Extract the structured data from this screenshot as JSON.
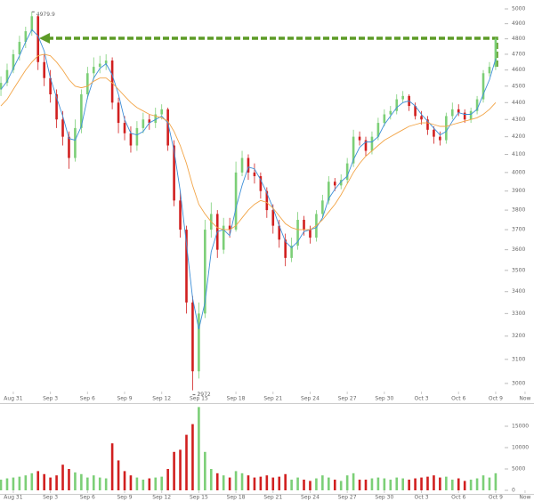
{
  "chart_data": [
    {
      "type": "candlestick",
      "log_scale": true,
      "up_color": "#7ccf77",
      "down_color": "#d11f1f",
      "xlim": [
        -0.15,
        86.2
      ],
      "xticks": [
        {
          "value": 2,
          "label": "Aug 31"
        },
        {
          "value": 8,
          "label": "Sep 3"
        },
        {
          "value": 14,
          "label": "Sep 6"
        },
        {
          "value": 20,
          "label": "Sep 9"
        },
        {
          "value": 26,
          "label": "Sep 12"
        },
        {
          "value": 32,
          "label": "Sep 15"
        },
        {
          "value": 38,
          "label": "Sep 18"
        },
        {
          "value": 44,
          "label": "Sep 21"
        },
        {
          "value": 50,
          "label": "Sep 24"
        },
        {
          "value": 56,
          "label": "Sep 27"
        },
        {
          "value": 62,
          "label": "Sep 30"
        },
        {
          "value": 68,
          "label": "Oct 3"
        },
        {
          "value": 74,
          "label": "Oct 6"
        },
        {
          "value": 80,
          "label": "Oct 9"
        },
        {
          "value": 84.75,
          "label": "Now"
        }
      ],
      "ylim": [
        2924,
        5061
      ],
      "yticks": [
        3000,
        3100,
        3200,
        3300,
        3400,
        3500,
        3600,
        3700,
        3800,
        3900,
        4000,
        4100,
        4200,
        4300,
        4400,
        4500,
        4600,
        4700,
        4800,
        4900,
        5000
      ],
      "annotations": [
        {
          "text": "4979.9"
        },
        {
          "text": "2972"
        }
      ],
      "open": [
        4480,
        4520,
        4600,
        4700,
        4780,
        4850,
        4950,
        4650,
        4550,
        4450,
        4300,
        4200,
        4080,
        4250,
        4450,
        4580,
        4620,
        4640,
        4660,
        4400,
        4280,
        4220,
        4150,
        4250,
        4300,
        4280,
        4330,
        4360,
        4150,
        3850,
        3700,
        3350,
        3050,
        3300,
        3700,
        3780,
        3600,
        3720,
        3700,
        4000,
        4080,
        4000,
        3980,
        3900,
        3800,
        3720,
        3650,
        3560,
        3620,
        3750,
        3700,
        3660,
        3780,
        3850,
        3950,
        3930,
        3960,
        4050,
        4200,
        4180,
        4120,
        4200,
        4280,
        4330,
        4350,
        4420,
        4440,
        4380,
        4320,
        4300,
        4240,
        4200,
        4180,
        4320,
        4360,
        4340,
        4300,
        4350,
        4420,
        4580,
        4620
      ],
      "high": [
        4560,
        4640,
        4730,
        4820,
        4880,
        4979.9,
        4960,
        4700,
        4600,
        4480,
        4350,
        4230,
        4300,
        4480,
        4620,
        4680,
        4690,
        4700,
        4680,
        4430,
        4320,
        4260,
        4290,
        4340,
        4330,
        4370,
        4390,
        4370,
        4180,
        3900,
        3720,
        3380,
        3350,
        3750,
        3840,
        3800,
        3760,
        3760,
        4060,
        4120,
        4100,
        4050,
        4000,
        3920,
        3830,
        3750,
        3680,
        3660,
        3790,
        3770,
        3720,
        3800,
        3880,
        3980,
        3970,
        3990,
        4080,
        4240,
        4230,
        4200,
        4230,
        4310,
        4360,
        4380,
        4450,
        4470,
        4450,
        4400,
        4350,
        4320,
        4260,
        4230,
        4340,
        4400,
        4390,
        4360,
        4370,
        4440,
        4600,
        4650,
        4810
      ],
      "low": [
        4440,
        4500,
        4580,
        4660,
        4740,
        4820,
        4600,
        4500,
        4400,
        4250,
        4150,
        4020,
        4060,
        4220,
        4420,
        4540,
        4580,
        4600,
        4360,
        4220,
        4180,
        4110,
        4120,
        4220,
        4240,
        4250,
        4300,
        4120,
        3820,
        3660,
        3300,
        2972,
        3020,
        3280,
        3660,
        3560,
        3580,
        3660,
        3690,
        3980,
        3960,
        3940,
        3860,
        3760,
        3680,
        3610,
        3520,
        3540,
        3600,
        3670,
        3630,
        3640,
        3760,
        3830,
        3900,
        3910,
        3940,
        4030,
        4150,
        4090,
        4100,
        4180,
        4260,
        4300,
        4330,
        4400,
        4350,
        4300,
        4270,
        4210,
        4160,
        4150,
        4160,
        4300,
        4320,
        4280,
        4280,
        4330,
        4400,
        4560,
        4600
      ],
      "close": [
        4520,
        4600,
        4700,
        4780,
        4850,
        4950,
        4650,
        4550,
        4450,
        4300,
        4200,
        4080,
        4250,
        4450,
        4580,
        4620,
        4640,
        4660,
        4400,
        4280,
        4220,
        4150,
        4250,
        4300,
        4280,
        4330,
        4360,
        4150,
        3850,
        3700,
        3350,
        3050,
        3300,
        3700,
        3780,
        3600,
        3720,
        3700,
        4000,
        4080,
        4000,
        3980,
        3900,
        3800,
        3720,
        3650,
        3560,
        3620,
        3750,
        3700,
        3660,
        3780,
        3850,
        3950,
        3930,
        3960,
        4050,
        4200,
        4180,
        4120,
        4200,
        4280,
        4330,
        4350,
        4420,
        4440,
        4380,
        4320,
        4300,
        4240,
        4200,
        4180,
        4320,
        4360,
        4340,
        4300,
        4350,
        4420,
        4580,
        4620,
        4800
      ],
      "series": [
        {
          "color": "#3d8fd8",
          "values": [
            4480,
            4530,
            4610,
            4690,
            4780,
            4860,
            4820,
            4720,
            4550,
            4430,
            4320,
            4190,
            4180,
            4260,
            4430,
            4550,
            4610,
            4640,
            4570,
            4450,
            4300,
            4220,
            4210,
            4230,
            4280,
            4300,
            4320,
            4280,
            4120,
            3900,
            3630,
            3370,
            3230,
            3350,
            3590,
            3690,
            3700,
            3670,
            3810,
            3930,
            4030,
            4020,
            3960,
            3890,
            3810,
            3720,
            3640,
            3610,
            3640,
            3690,
            3700,
            3710,
            3760,
            3860,
            3910,
            3950,
            3980,
            4070,
            4140,
            4170,
            4170,
            4200,
            4270,
            4320,
            4370,
            4400,
            4410,
            4380,
            4330,
            4290,
            4250,
            4210,
            4230,
            4290,
            4340,
            4330,
            4330,
            4360,
            4450,
            4540,
            4670
          ]
        },
        {
          "color": "#f2a446",
          "values": [
            4380,
            4420,
            4480,
            4540,
            4600,
            4650,
            4690,
            4700,
            4690,
            4650,
            4600,
            4540,
            4500,
            4490,
            4500,
            4530,
            4550,
            4550,
            4520,
            4480,
            4440,
            4400,
            4370,
            4350,
            4330,
            4320,
            4310,
            4290,
            4230,
            4150,
            4050,
            3930,
            3830,
            3780,
            3740,
            3710,
            3700,
            3700,
            3720,
            3760,
            3800,
            3830,
            3850,
            3840,
            3810,
            3770,
            3730,
            3710,
            3700,
            3700,
            3700,
            3720,
            3750,
            3790,
            3830,
            3880,
            3940,
            4000,
            4050,
            4090,
            4120,
            4150,
            4180,
            4200,
            4220,
            4240,
            4260,
            4270,
            4280,
            4280,
            4270,
            4260,
            4260,
            4270,
            4280,
            4290,
            4300,
            4310,
            4330,
            4360,
            4400
          ]
        }
      ]
    },
    {
      "type": "bar",
      "ylim": [
        0,
        20000
      ],
      "yticks": [
        0,
        5000,
        10000,
        15000
      ],
      "values": [
        2500,
        2800,
        3000,
        3200,
        3500,
        4000,
        4500,
        3800,
        3000,
        3500,
        6000,
        5000,
        4200,
        3800,
        3000,
        3500,
        3000,
        2800,
        11000,
        7000,
        4500,
        3500,
        3000,
        2500,
        2800,
        3000,
        3200,
        5000,
        9000,
        9500,
        13000,
        15500,
        19500,
        9000,
        5000,
        4000,
        3500,
        3000,
        4500,
        4000,
        3500,
        3000,
        3200,
        3500,
        3000,
        3200,
        3800,
        2500,
        3000,
        2500,
        2200,
        2800,
        3500,
        3000,
        2500,
        2200,
        3500,
        4000,
        2500,
        2500,
        2800,
        3000,
        2800,
        2500,
        3000,
        2800,
        2500,
        2800,
        3000,
        3200,
        3500,
        3000,
        3200,
        2500,
        2800,
        2200,
        2500,
        2800,
        3500,
        3000,
        4000
      ]
    }
  ]
}
